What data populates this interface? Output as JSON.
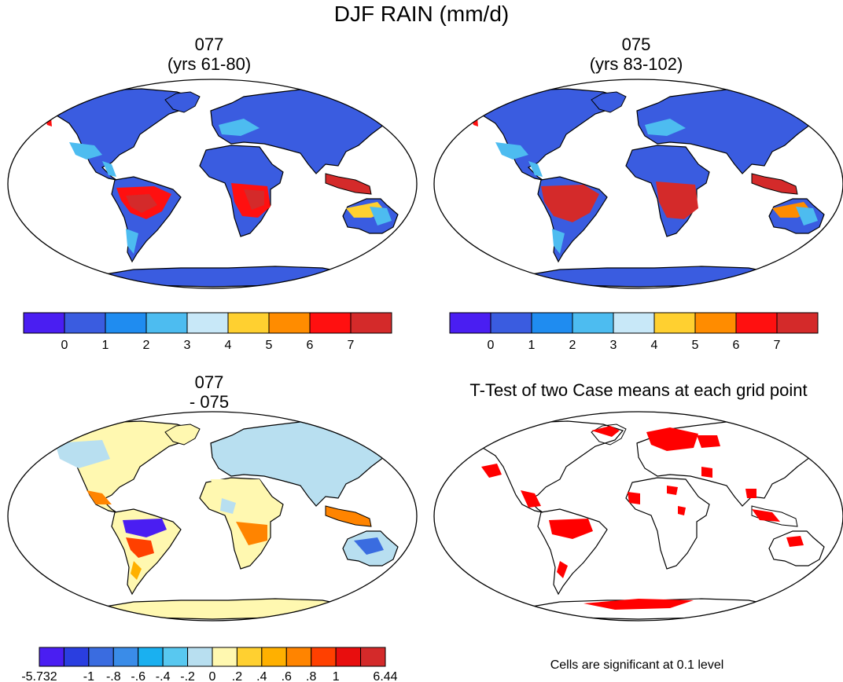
{
  "figure": {
    "title": "DJF RAIN (mm/d)"
  },
  "panels": [
    {
      "id": "p1",
      "title_line1": "077",
      "title_line2": "(yrs 61-80)"
    },
    {
      "id": "p2",
      "title_line1": "075",
      "title_line2": "(yrs 83-102)"
    },
    {
      "id": "p3",
      "title_line1": "077",
      "title_line2": "- 075"
    },
    {
      "id": "p4",
      "title_line1": "T-Test of two Case means at each grid point",
      "title_line2": ""
    }
  ],
  "colorbars": {
    "absolute": {
      "colors": [
        "#4a1ef2",
        "#3a5ce0",
        "#1f8cf0",
        "#4dbcf0",
        "#c8e8f8",
        "#ffd030",
        "#ff8c00",
        "#ff1010",
        "#d42a2a"
      ],
      "tick_labels": [
        "0",
        "1",
        "2",
        "3",
        "4",
        "5",
        "6",
        "7"
      ]
    },
    "difference": {
      "colors": [
        "#4a1ef2",
        "#2a3ee0",
        "#3a6ce0",
        "#3a8ce8",
        "#1ab0f0",
        "#58c8f0",
        "#b8dff0",
        "#fff8b0",
        "#ffd030",
        "#ffb000",
        "#ff8400",
        "#ff4000",
        "#e80e0e",
        "#d42a2a"
      ],
      "tick_labels": [
        "-5.732",
        "-1",
        "-.8",
        "-.6",
        "-.4",
        "-.2",
        "0",
        ".2",
        ".4",
        ".6",
        ".8",
        "1",
        "6.44"
      ]
    }
  },
  "ttest": {
    "significance_color": "#ff0000",
    "note": "Cells are significant at 0.1 level"
  }
}
